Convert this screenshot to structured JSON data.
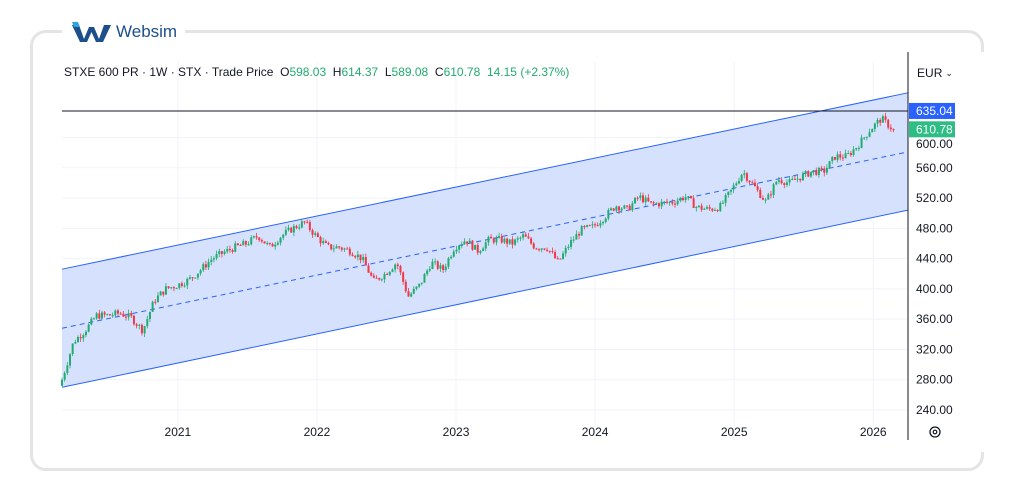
{
  "brand": {
    "name": "Websim"
  },
  "legend": {
    "symbol": "STXE 600 PR",
    "interval": "1W",
    "exchange": "STX",
    "price_type": "Trade Price",
    "open": "598.03",
    "high": "614.37",
    "low": "589.08",
    "close": "610.78",
    "change": "14.15 (+2.37%)"
  },
  "currency": "EUR",
  "colors": {
    "up": "#22ab6f",
    "down": "#f23645",
    "channel": "#2962ff",
    "channel_fill": "#d4e0fd",
    "last_price": "#2ebd85",
    "high_label": "#2962ff"
  },
  "chart_data": {
    "type": "candlestick",
    "interval": "weekly",
    "x_ticks": [
      "2021",
      "2022",
      "2023",
      "2024",
      "2025",
      "2026"
    ],
    "y_ticks": [
      240,
      280,
      320,
      360,
      400,
      440,
      480,
      520,
      560,
      600
    ],
    "ylim": [
      228,
      668
    ],
    "xlim": [
      "2020-03",
      "2026-04"
    ],
    "grid": true,
    "price_labels": {
      "horizontal_line": "635.04",
      "last": "610.78"
    },
    "regression_channel": {
      "upper": [
        426,
        659
      ],
      "mid": [
        348,
        581
      ],
      "lower": [
        270,
        504
      ],
      "span": [
        "2020-03",
        "2026-04"
      ]
    },
    "monthly_closes": {
      "start": "2020-03",
      "values": [
        280,
        330,
        345,
        365,
        365,
        368,
        362,
        345,
        385,
        400,
        405,
        412,
        425,
        440,
        448,
        455,
        460,
        470,
        455,
        470,
        480,
        488,
        470,
        455,
        455,
        450,
        440,
        410,
        420,
        435,
        390,
        405,
        435,
        425,
        455,
        465,
        450,
        465,
        465,
        460,
        470,
        455,
        455,
        435,
        460,
        478,
        482,
        495,
        510,
        505,
        522,
        512,
        513,
        515,
        522,
        508,
        505,
        508,
        530,
        555,
        535,
        515,
        545,
        540,
        548,
        555,
        555,
        575,
        575,
        590,
        610,
        625,
        610.78
      ]
    }
  }
}
